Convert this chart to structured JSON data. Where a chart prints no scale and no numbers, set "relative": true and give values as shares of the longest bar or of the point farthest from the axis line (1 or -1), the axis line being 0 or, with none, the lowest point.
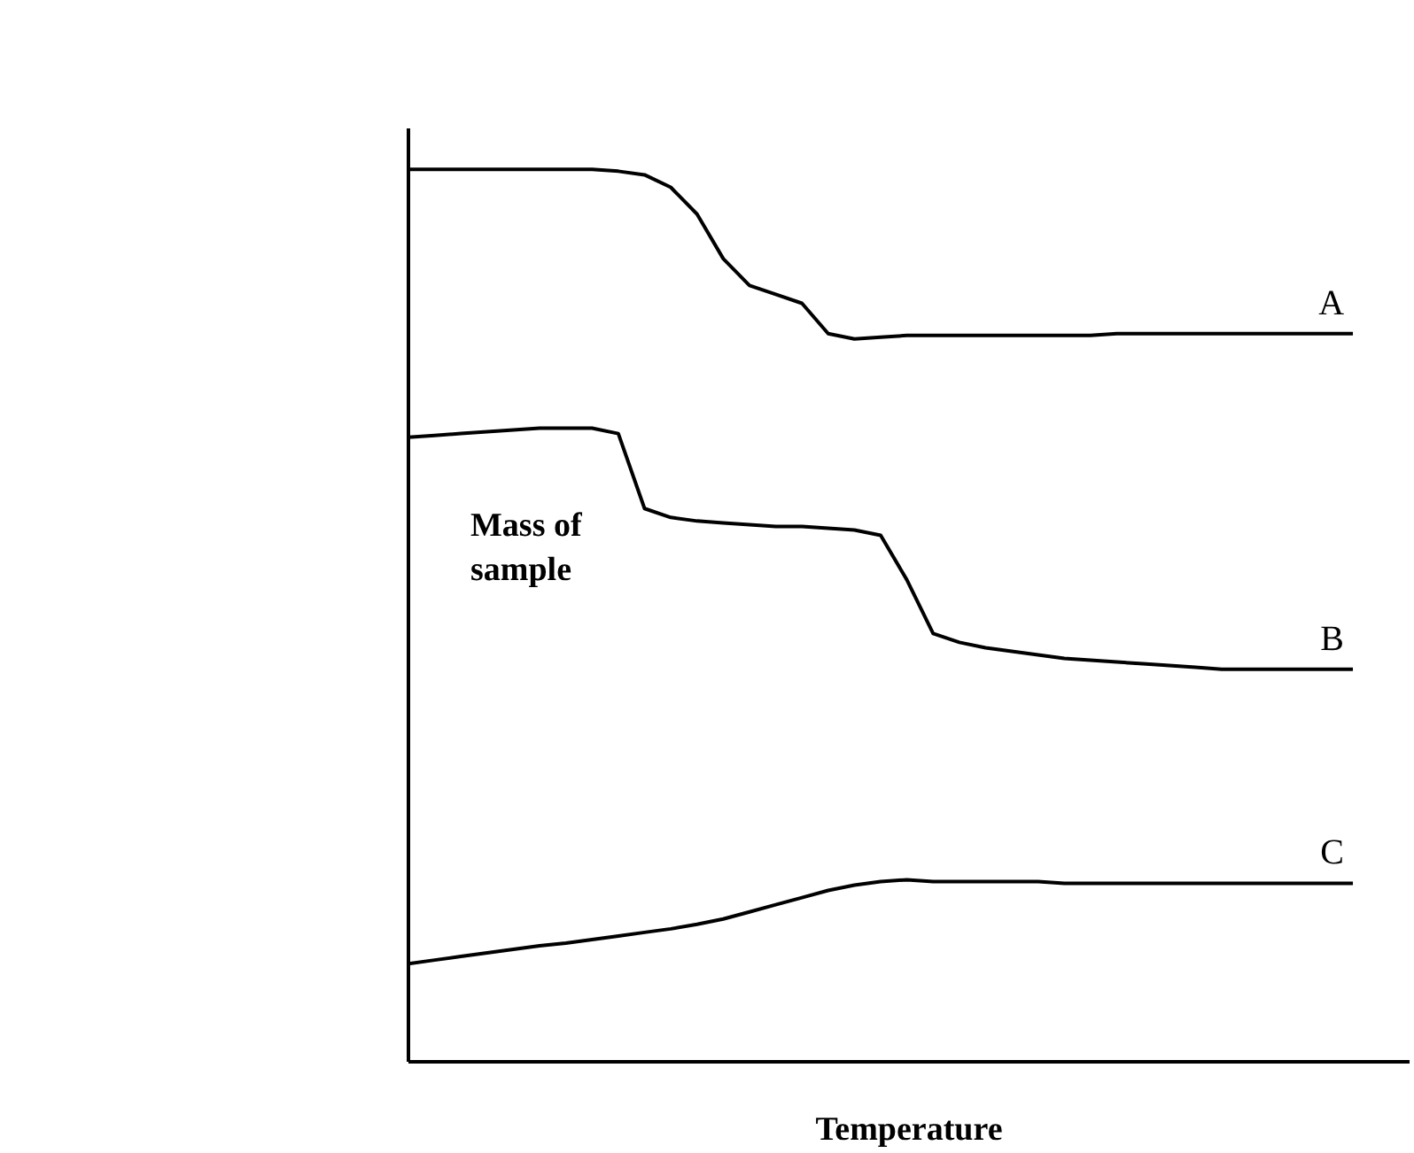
{
  "chart_data": {
    "type": "line",
    "relative": true,
    "xlabel": "Temperature",
    "ylabel": "Mass of sample",
    "categories": [
      null,
      null,
      null,
      null,
      null,
      null,
      null,
      null,
      null,
      null,
      null,
      null,
      null,
      null,
      null,
      null,
      null,
      null,
      null,
      null,
      null,
      null,
      null,
      null,
      null,
      null,
      null,
      null,
      null,
      null,
      null,
      null,
      null,
      null,
      null,
      null,
      null
    ],
    "series": [
      {
        "name": "A",
        "color": "#000000",
        "values": [
          1.0,
          1.0,
          1.0,
          1.0,
          1.0,
          1.0,
          1.0,
          1.0,
          0.998,
          0.994,
          0.98,
          0.95,
          0.9,
          0.87,
          0.86,
          0.85,
          0.816,
          0.81,
          0.812,
          0.814,
          0.814,
          0.814,
          0.814,
          0.814,
          0.814,
          0.814,
          0.814,
          0.816,
          0.816,
          0.816,
          0.816,
          0.816,
          0.816,
          0.816,
          0.816,
          0.816,
          0.816
        ]
      },
      {
        "name": "B",
        "color": "#000000",
        "values": [
          0.7,
          0.702,
          0.704,
          0.706,
          0.708,
          0.71,
          0.71,
          0.71,
          0.704,
          0.62,
          0.61,
          0.606,
          0.604,
          0.602,
          0.6,
          0.6,
          0.598,
          0.596,
          0.59,
          0.54,
          0.48,
          0.47,
          0.464,
          0.46,
          0.456,
          0.452,
          0.45,
          0.448,
          0.446,
          0.444,
          0.442,
          0.44,
          0.44,
          0.44,
          0.44,
          0.44,
          0.44
        ]
      },
      {
        "name": "C",
        "color": "#000000",
        "values": [
          0.11,
          0.114,
          0.118,
          0.122,
          0.126,
          0.13,
          0.133,
          0.137,
          0.141,
          0.145,
          0.149,
          0.154,
          0.16,
          0.168,
          0.176,
          0.184,
          0.192,
          0.198,
          0.202,
          0.204,
          0.202,
          0.202,
          0.202,
          0.202,
          0.202,
          0.2,
          0.2,
          0.2,
          0.2,
          0.2,
          0.2,
          0.2,
          0.2,
          0.2,
          0.2,
          0.2,
          0.2
        ]
      }
    ],
    "legend": false,
    "marker": "none",
    "line_style": "solid"
  }
}
